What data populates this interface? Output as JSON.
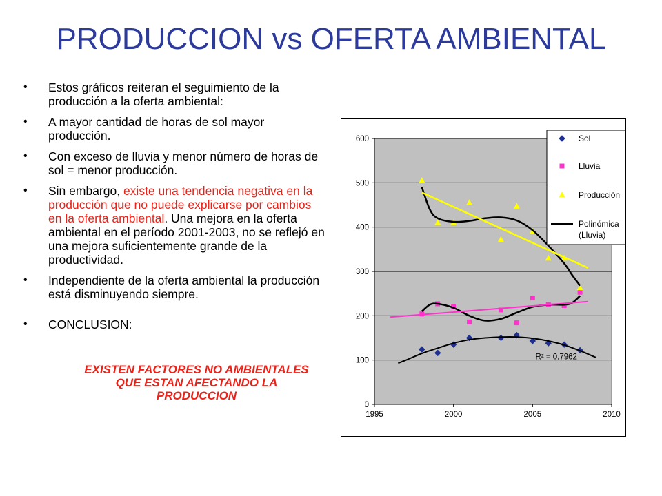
{
  "title": "PRODUCCION vs OFERTA AMBIENTAL",
  "bullets": {
    "b1": "Estos gráficos reiteran el seguimiento de la producción a la oferta ambiental:",
    "b2": " A mayor cantidad de horas de sol mayor producción.",
    "b3": "Con exceso de lluvia y menor número de horas de sol = menor producción.",
    "b4_pre": "Sin embargo, ",
    "b4_red": "existe una tendencia negativa en la producción que no puede explicarse por cambios en la oferta ambiental",
    "b4_post": ". Una mejora en la oferta ambiental en el período 2001-2003, no se reflejó en una mejora suficientemente grande de la productividad.",
    "b5": "Independiente de la oferta ambiental la producción está disminuyendo siempre.",
    "b6": "CONCLUSION:"
  },
  "conclusion": {
    "line1": "EXISTEN FACTORES NO AMBIENTALES",
    "line2": "QUE ESTAN AFECTANDO LA",
    "line3": "PRODUCCION"
  },
  "colors": {
    "title": "#2b3a9b",
    "highlight": "#e8231a",
    "plot_bg": "#c0c0c0",
    "sol": "#1f2f8f",
    "lluvia": "#ff33cc",
    "produccion": "#ffff00"
  },
  "chart_data": {
    "type": "scatter",
    "xlim": [
      1995,
      2010
    ],
    "ylim": [
      0,
      600
    ],
    "x_ticks": [
      1995,
      2000,
      2005,
      2010
    ],
    "y_ticks": [
      0,
      100,
      200,
      300,
      400,
      500,
      600
    ],
    "grid": "horizontal",
    "legend_position": "top-right",
    "r2_label": "R² = 0,7962",
    "series": [
      {
        "name": "Sol",
        "marker": "diamond",
        "color": "#1f2f8f",
        "points": [
          [
            1998,
            124
          ],
          [
            1999,
            116
          ],
          [
            2000,
            135
          ],
          [
            2001,
            150
          ],
          [
            2003,
            150
          ],
          [
            2004,
            156
          ],
          [
            2005,
            143
          ],
          [
            2006,
            138
          ],
          [
            2007,
            135
          ],
          [
            2008,
            122
          ]
        ]
      },
      {
        "name": "Lluvia",
        "marker": "square",
        "color": "#ff33cc",
        "points": [
          [
            1998,
            204
          ],
          [
            1999,
            227
          ],
          [
            2000,
            220
          ],
          [
            2001,
            186
          ],
          [
            2003,
            213
          ],
          [
            2004,
            184
          ],
          [
            2005,
            240
          ],
          [
            2006,
            225
          ],
          [
            2007,
            223
          ],
          [
            2008,
            253
          ]
        ]
      },
      {
        "name": "Producción",
        "marker": "triangle",
        "color": "#ffff00",
        "points": [
          [
            1998,
            505
          ],
          [
            1999,
            410
          ],
          [
            2000,
            410
          ],
          [
            2001,
            455
          ],
          [
            2003,
            372
          ],
          [
            2004,
            447
          ],
          [
            2005,
            390
          ],
          [
            2006,
            330
          ],
          [
            2007,
            330
          ],
          [
            2008,
            263
          ]
        ]
      }
    ],
    "curves": [
      {
        "name": "Polinómica (Lluvia)",
        "color": "#000000",
        "width": 2.5,
        "points": [
          [
            1998,
            210
          ],
          [
            1998.5,
            225
          ],
          [
            1999,
            227
          ],
          [
            2000,
            218
          ],
          [
            2001,
            200
          ],
          [
            2002,
            189
          ],
          [
            2003,
            193
          ],
          [
            2004,
            207
          ],
          [
            2005,
            220
          ],
          [
            2006,
            225
          ],
          [
            2007,
            225
          ],
          [
            2007.5,
            229
          ],
          [
            2008,
            245
          ]
        ]
      },
      {
        "name": "",
        "color": "#000000",
        "width": 2.5,
        "points": [
          [
            1998,
            490
          ],
          [
            1998.5,
            440
          ],
          [
            1999,
            420
          ],
          [
            2000,
            412
          ],
          [
            2001,
            414
          ],
          [
            2002,
            420
          ],
          [
            2003,
            422
          ],
          [
            2004,
            415
          ],
          [
            2005,
            393
          ],
          [
            2006,
            358
          ],
          [
            2007,
            318
          ],
          [
            2007.5,
            292
          ],
          [
            2008,
            268
          ]
        ]
      },
      {
        "name": "",
        "color": "#000000",
        "width": 2,
        "points": [
          [
            1996.5,
            93
          ],
          [
            1997,
            100
          ],
          [
            1998,
            115
          ],
          [
            1999,
            127
          ],
          [
            2000,
            138
          ],
          [
            2001,
            146
          ],
          [
            2002,
            150
          ],
          [
            2003,
            152
          ],
          [
            2004,
            152
          ],
          [
            2005,
            149
          ],
          [
            2006,
            143
          ],
          [
            2007,
            134
          ],
          [
            2008,
            121
          ],
          [
            2009,
            106
          ]
        ]
      },
      {
        "name": "",
        "color": "#ffff00",
        "width": 2.5,
        "points": [
          [
            1998,
            478
          ],
          [
            2008.5,
            308
          ]
        ]
      },
      {
        "name": "",
        "color": "#ff33cc",
        "width": 2,
        "points": [
          [
            1996,
            197
          ],
          [
            2008.5,
            232
          ]
        ]
      }
    ],
    "legend": [
      {
        "label": "Sol",
        "marker": "diamond",
        "color": "#1f2f8f"
      },
      {
        "label": "Lluvia",
        "marker": "square",
        "color": "#ff33cc"
      },
      {
        "label": "Producción",
        "marker": "triangle",
        "color": "#ffff00"
      },
      {
        "label": "Polinómica",
        "label2": "(Lluvia)",
        "marker": "line",
        "color": "#000000"
      }
    ]
  }
}
